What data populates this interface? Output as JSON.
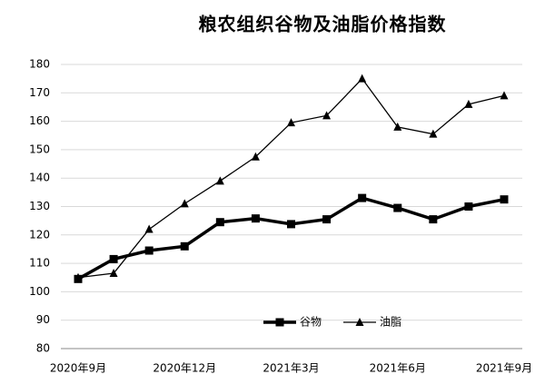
{
  "chart_data": {
    "type": "line",
    "title": "粮农组织谷物及油脂价格指数",
    "categories": [
      "2020年9月",
      null,
      null,
      "2020年12月",
      null,
      null,
      "2021年3月",
      null,
      null,
      "2021年6月",
      null,
      null,
      "2021年9月"
    ],
    "series": [
      {
        "name": "谷物",
        "color": "#000000",
        "marker": "square",
        "values": [
          104.5,
          111.5,
          114.5,
          116,
          124.5,
          125.8,
          123.8,
          125.5,
          133,
          129.5,
          125.5,
          130,
          132.5
        ]
      },
      {
        "name": "油脂",
        "color": "#000000",
        "marker": "triangle",
        "values": [
          105,
          106.5,
          122,
          131,
          139,
          147.5,
          159.5,
          162,
          175,
          158,
          155.5,
          166,
          169
        ]
      }
    ],
    "ylim": [
      80,
      180
    ],
    "yticks": [
      80,
      90,
      100,
      110,
      120,
      130,
      140,
      150,
      160,
      170,
      180
    ],
    "grid": true
  }
}
